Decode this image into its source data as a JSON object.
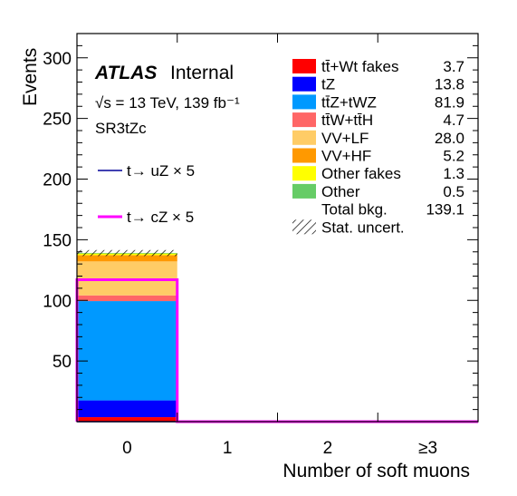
{
  "chart_data": {
    "type": "bar",
    "stacked": true,
    "x_tick_labels": [
      "0",
      "1",
      "2",
      "≥3"
    ],
    "xlabel": "Number of soft muons",
    "ylabel": "Events",
    "ylim": [
      0,
      320
    ],
    "y_ticks": [
      50,
      100,
      150,
      200,
      250,
      300
    ],
    "atlas_label": "ATLAS",
    "atlas_suffix": "Internal",
    "energy_label": "√s = 13 TeV, 139 fb⁻¹",
    "region_label": "SR3tZc",
    "stack_series": [
      {
        "name": "tt̄+Wt fakes",
        "value_label": "3.7",
        "values": [
          3.7,
          0,
          0,
          0
        ],
        "color": "#ff0000"
      },
      {
        "name": "tZ",
        "value_label": "13.8",
        "values": [
          13.8,
          0,
          0,
          0
        ],
        "color": "#0000ff"
      },
      {
        "name": "tt̄Z+tWZ",
        "value_label": "81.9",
        "values": [
          81.9,
          0,
          0,
          0
        ],
        "color": "#0099ff"
      },
      {
        "name": "tt̄W+tt̄H",
        "value_label": "4.7",
        "values": [
          4.7,
          0,
          0,
          0
        ],
        "color": "#ff6666"
      },
      {
        "name": "VV+LF",
        "value_label": "28.0",
        "values": [
          28.0,
          0,
          0,
          0
        ],
        "color": "#ffcc66"
      },
      {
        "name": "VV+HF",
        "value_label": "5.2",
        "values": [
          5.2,
          0,
          0,
          0
        ],
        "color": "#ff9900"
      },
      {
        "name": "Other fakes",
        "value_label": "1.3",
        "values": [
          1.3,
          0,
          0,
          0
        ],
        "color": "#ffff00"
      },
      {
        "name": "Other",
        "value_label": "0.5",
        "values": [
          0.5,
          0,
          0,
          0
        ],
        "color": "#66cc66"
      }
    ],
    "total": {
      "name": "Total bkg.",
      "value_label": "139.1"
    },
    "stat_uncert": {
      "name": "Stat. uncert.",
      "bands": [
        [
          136.5,
          141.5
        ]
      ]
    },
    "signal_series": [
      {
        "name": "t→ uZ × 5",
        "values": [
          0,
          0,
          0,
          0
        ],
        "color": "#000099"
      },
      {
        "name": "t→ cZ × 5",
        "values": [
          117,
          0,
          0,
          0
        ],
        "color": "#ff00ff"
      }
    ]
  }
}
